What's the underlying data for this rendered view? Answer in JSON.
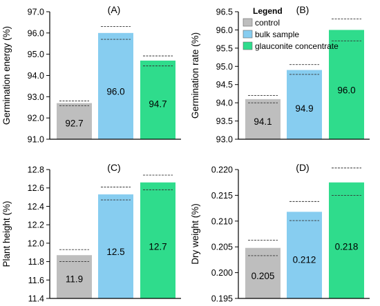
{
  "legend": {
    "title": "Legend",
    "items": [
      {
        "label": "control",
        "color": "#bebebe"
      },
      {
        "label": "bulk sample",
        "color": "#87cdf0"
      },
      {
        "label": "glauconite concentrate",
        "color": "#2fdc8c"
      }
    ]
  },
  "chart_data": [
    {
      "type": "bar",
      "title": "(A)",
      "ylabel": "Germination energy (%)",
      "ylim": [
        91.0,
        97.0
      ],
      "yticks": [
        "91.0",
        "92.0",
        "93.0",
        "94.0",
        "95.0",
        "96.0",
        "97.0"
      ],
      "categories": [
        "control",
        "bulk sample",
        "glauconite concentrate"
      ],
      "values": [
        92.7,
        96.0,
        94.7
      ],
      "labels": [
        "92.7",
        "96.0",
        "94.7"
      ],
      "error_bounds": [
        [
          92.58,
          92.8
        ],
        [
          95.7,
          96.3
        ],
        [
          94.45,
          94.92
        ]
      ]
    },
    {
      "type": "bar",
      "title": "(B)",
      "ylabel": "Germination rate (%)",
      "ylim": [
        93.0,
        96.5
      ],
      "yticks": [
        "93.0",
        "93.5",
        "94.0",
        "94.5",
        "95.0",
        "95.5",
        "96.0",
        "96.5"
      ],
      "categories": [
        "control",
        "bulk sample",
        "glauconite concentrate"
      ],
      "values": [
        94.1,
        94.9,
        96.0
      ],
      "labels": [
        "94.1",
        "94.9",
        "96.0"
      ],
      "error_bounds": [
        [
          94.0,
          94.2
        ],
        [
          94.78,
          95.05
        ],
        [
          95.7,
          96.3
        ]
      ]
    },
    {
      "type": "bar",
      "title": "(C)",
      "ylabel": "Plant height (%)",
      "ylim": [
        11.4,
        12.8
      ],
      "yticks": [
        "11.4",
        "11.6",
        "11.8",
        "12.0",
        "12.2",
        "12.4",
        "12.6",
        "12.8"
      ],
      "categories": [
        "control",
        "bulk sample",
        "glauconite concentrate"
      ],
      "values": [
        11.87,
        12.53,
        12.66
      ],
      "labels": [
        "11.9",
        "12.5",
        "12.7"
      ],
      "error_bounds": [
        [
          11.8,
          11.93
        ],
        [
          12.47,
          12.61
        ],
        [
          12.58,
          12.74
        ]
      ]
    },
    {
      "type": "bar",
      "title": "(D)",
      "ylabel": "Dry weight (%)",
      "ylim": [
        0.195,
        0.22
      ],
      "yticks": [
        "0.195",
        "0.200",
        "0.205",
        "0.210",
        "0.215",
        "0.220"
      ],
      "categories": [
        "control",
        "bulk sample",
        "glauconite concentrate"
      ],
      "values": [
        0.2048,
        0.2118,
        0.2175
      ],
      "labels": [
        "0.205",
        "0.212",
        "0.218"
      ],
      "error_bounds": [
        [
          0.2033,
          0.2063
        ],
        [
          0.2101,
          0.2138
        ],
        [
          0.215,
          0.2203
        ]
      ]
    }
  ]
}
